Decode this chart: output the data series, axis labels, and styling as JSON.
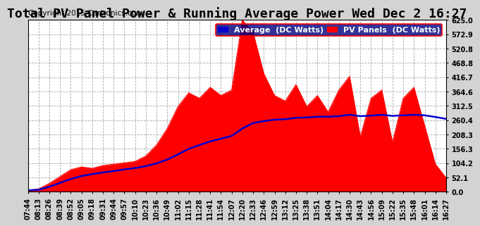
{
  "title": "Total PV Panel Power & Running Average Power Wed Dec 2 16:27",
  "copyright": "Copyright 2015 Cartronics.com",
  "legend_avg": "Average  (DC Watts)",
  "legend_pv": "PV Panels  (DC Watts)",
  "background_color": "#d3d3d3",
  "plot_bg_color": "#ffffff",
  "pv_color": "#ff0000",
  "avg_color": "#0000cd",
  "ylim": [
    0,
    625.0
  ],
  "yticks": [
    0.0,
    52.1,
    104.2,
    156.3,
    208.3,
    260.4,
    312.5,
    364.6,
    416.7,
    468.8,
    520.8,
    572.9,
    625.0
  ],
  "ytick_labels": [
    "0.0",
    "52.1",
    "104.2",
    "156.3",
    "208.3",
    "260.4",
    "312.5",
    "364.6",
    "416.7",
    "468.8",
    "520.8",
    "572.9",
    "625.0"
  ],
  "xtick_labels": [
    "07:44",
    "08:13",
    "08:26",
    "08:39",
    "08:52",
    "09:05",
    "09:18",
    "09:31",
    "09:44",
    "09:57",
    "10:10",
    "10:23",
    "10:36",
    "10:49",
    "11:02",
    "11:15",
    "11:28",
    "11:41",
    "11:54",
    "12:07",
    "12:20",
    "12:33",
    "12:46",
    "12:59",
    "13:12",
    "13:25",
    "13:38",
    "13:51",
    "14:04",
    "14:17",
    "14:30",
    "14:43",
    "14:56",
    "15:09",
    "15:22",
    "15:35",
    "15:48",
    "16:01",
    "16:14",
    "16:27"
  ],
  "pv_data": [
    5,
    10,
    30,
    55,
    80,
    90,
    85,
    95,
    100,
    105,
    110,
    130,
    170,
    230,
    310,
    360,
    340,
    380,
    350,
    370,
    625,
    580,
    430,
    350,
    330,
    390,
    310,
    350,
    290,
    370,
    420,
    200,
    340,
    370,
    180,
    340,
    380,
    240,
    100,
    50
  ],
  "avg_data": [
    5,
    7,
    18,
    32,
    46,
    57,
    64,
    70,
    75,
    81,
    86,
    93,
    103,
    117,
    136,
    156,
    170,
    183,
    193,
    203,
    230,
    250,
    257,
    262,
    264,
    269,
    270,
    273,
    273,
    275,
    280,
    275,
    277,
    280,
    276,
    278,
    280,
    278,
    272,
    265
  ],
  "title_fontsize": 13,
  "copyright_fontsize": 7.5,
  "tick_fontsize": 7,
  "legend_fontsize": 8
}
